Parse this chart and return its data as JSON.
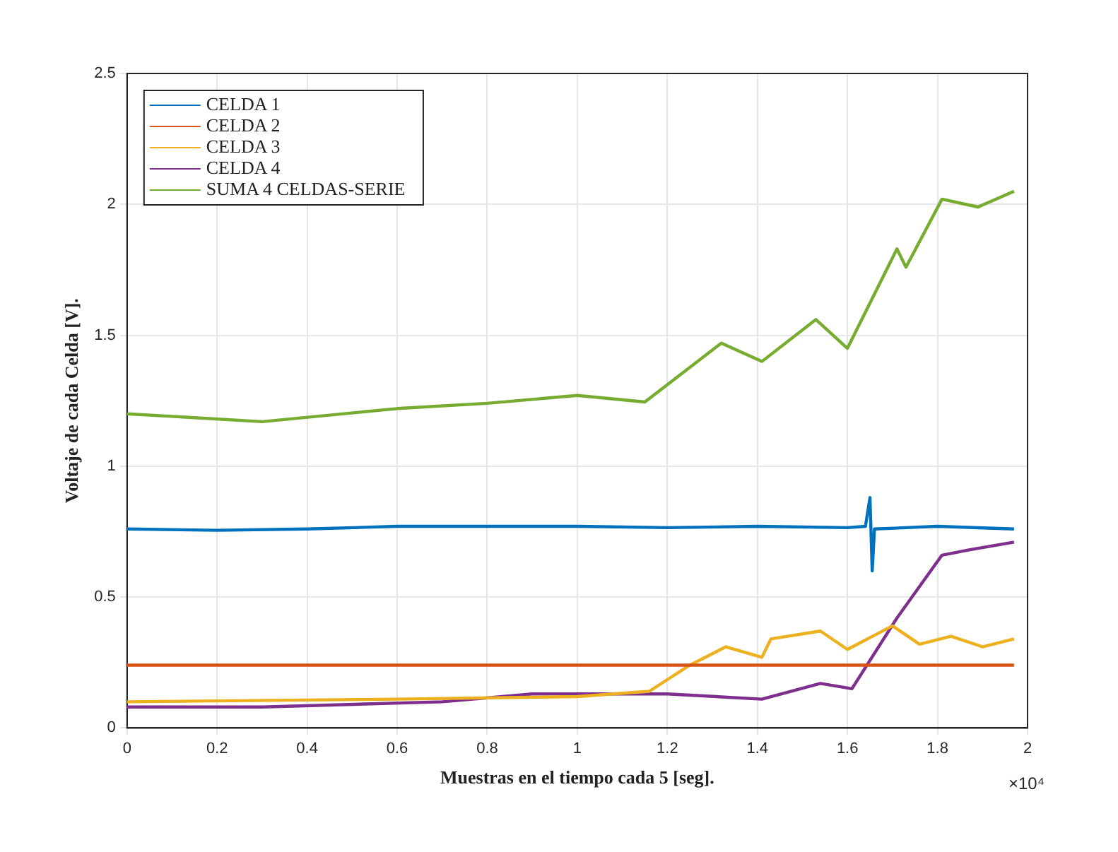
{
  "chart_data": {
    "type": "line",
    "xlabel": "Muestras en el tiempo cada 5 [seg].",
    "ylabel": "Voltaje de cada Celda [V].",
    "annotations": [
      "×10⁴"
    ],
    "xlim": [
      0,
      2
    ],
    "xticks": [
      0,
      0.2,
      0.4,
      0.6,
      0.8,
      1,
      1.2,
      1.4,
      1.6,
      1.8,
      2
    ],
    "ylim": [
      0,
      2.5
    ],
    "yticks": [
      0,
      0.5,
      1,
      1.5,
      2,
      2.5
    ],
    "grid": true,
    "legend": "top left",
    "marker": "none",
    "line_style": "solid",
    "series": [
      {
        "name": "CELDA 1",
        "color": "#0072bd",
        "x": [
          0,
          0.2,
          0.4,
          0.6,
          0.8,
          1,
          1.2,
          1.4,
          1.6,
          1.64,
          1.65,
          1.655,
          1.66,
          1.8,
          1.97
        ],
        "values": [
          0.76,
          0.755,
          0.76,
          0.77,
          0.77,
          0.77,
          0.765,
          0.77,
          0.765,
          0.77,
          0.88,
          0.6,
          0.76,
          0.77,
          0.76
        ]
      },
      {
        "name": "CELDA 2",
        "color": "#d95319",
        "x": [
          0,
          0.4,
          0.8,
          1.2,
          1.6,
          1.97
        ],
        "values": [
          0.24,
          0.24,
          0.24,
          0.24,
          0.24,
          0.24
        ]
      },
      {
        "name": "CELDA 3",
        "color": "#edb120",
        "x": [
          0,
          0.6,
          1,
          1.16,
          1.25,
          1.33,
          1.41,
          1.43,
          1.54,
          1.6,
          1.7,
          1.76,
          1.83,
          1.9,
          1.97
        ],
        "values": [
          0.1,
          0.11,
          0.12,
          0.14,
          0.24,
          0.31,
          0.27,
          0.34,
          0.37,
          0.3,
          0.39,
          0.32,
          0.35,
          0.31,
          0.34
        ]
      },
      {
        "name": "CELDA 4",
        "color": "#7e2f8e",
        "x": [
          0,
          0.3,
          0.7,
          0.9,
          1,
          1.2,
          1.41,
          1.54,
          1.61,
          1.71,
          1.81,
          1.87,
          1.97
        ],
        "values": [
          0.08,
          0.08,
          0.1,
          0.13,
          0.13,
          0.13,
          0.11,
          0.17,
          0.15,
          0.42,
          0.66,
          0.68,
          0.71
        ]
      },
      {
        "name": "SUMA 4 CELDAS-SERIE",
        "color": "#77ac30",
        "x": [
          0,
          0.3,
          0.6,
          0.8,
          1,
          1.15,
          1.32,
          1.41,
          1.53,
          1.6,
          1.71,
          1.73,
          1.81,
          1.89,
          1.97
        ],
        "values": [
          1.2,
          1.17,
          1.22,
          1.24,
          1.27,
          1.245,
          1.47,
          1.4,
          1.56,
          1.45,
          1.83,
          1.76,
          2.02,
          1.99,
          2.05
        ]
      }
    ]
  }
}
